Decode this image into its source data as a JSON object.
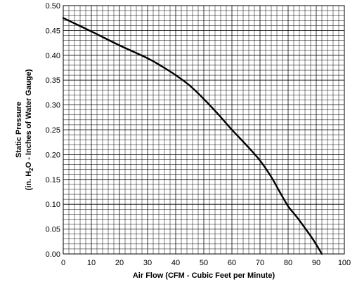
{
  "chart_data": {
    "type": "line",
    "title": "",
    "xlabel": "Air Flow (CFM - Cubic Feet per Minute)",
    "ylabel_line1": "Static Pressure",
    "ylabel_line2_parts": [
      "(in. H",
      "2",
      "O - Inches of Water Gauge)"
    ],
    "xlim": [
      0,
      100
    ],
    "ylim": [
      0,
      0.5
    ],
    "grid": true,
    "minor_grid": true,
    "x_ticks": [
      0,
      10,
      20,
      30,
      40,
      50,
      60,
      70,
      80,
      90,
      100
    ],
    "y_ticks": [
      0.0,
      0.05,
      0.1,
      0.15,
      0.2,
      0.25,
      0.3,
      0.35,
      0.4,
      0.45,
      0.5
    ],
    "x_tick_labels": [
      "0",
      "10",
      "20",
      "30",
      "40",
      "50",
      "60",
      "70",
      "80",
      "90",
      "100"
    ],
    "y_tick_labels": [
      "0.00",
      "0.05",
      "0.10",
      "0.15",
      "0.20",
      "0.25",
      "0.30",
      "0.35",
      "0.40",
      "0.45",
      "0.50"
    ],
    "series": [
      {
        "color": "#000000",
        "points": [
          [
            0,
            0.475
          ],
          [
            10,
            0.448
          ],
          [
            20,
            0.42
          ],
          [
            30,
            0.394
          ],
          [
            35,
            0.378
          ],
          [
            40,
            0.36
          ],
          [
            45,
            0.339
          ],
          [
            50,
            0.312
          ],
          [
            55,
            0.282
          ],
          [
            60,
            0.25
          ],
          [
            65,
            0.22
          ],
          [
            70,
            0.188
          ],
          [
            74,
            0.155
          ],
          [
            77,
            0.125
          ],
          [
            80,
            0.096
          ],
          [
            83,
            0.075
          ],
          [
            86,
            0.052
          ],
          [
            89,
            0.028
          ],
          [
            92,
            0.0
          ]
        ]
      }
    ]
  }
}
